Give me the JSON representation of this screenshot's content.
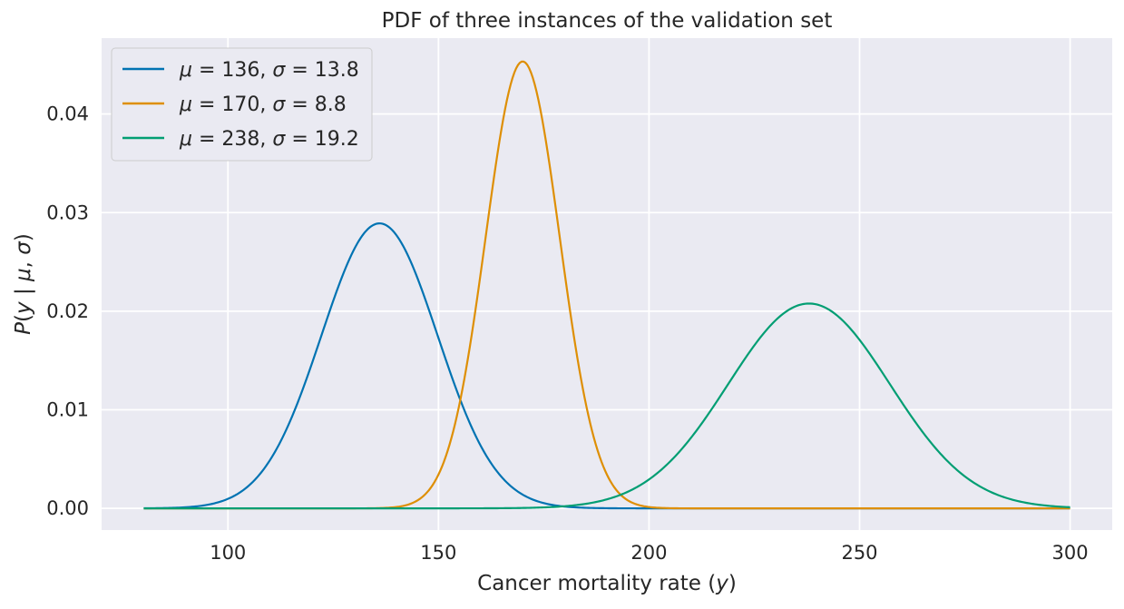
{
  "chart_data": {
    "type": "line",
    "title": "PDF of three instances of the validation set",
    "xlabel": "Cancer mortality rate (y)",
    "ylabel": "P(y | μ, σ)",
    "xlim": [
      70,
      310
    ],
    "ylim": [
      -0.0022,
      0.0477
    ],
    "x_range": [
      80,
      300
    ],
    "xticks": [
      100,
      150,
      200,
      250,
      300
    ],
    "xtick_labels": [
      "100",
      "150",
      "200",
      "250",
      "300"
    ],
    "yticks": [
      0.0,
      0.01,
      0.02,
      0.03,
      0.04
    ],
    "ytick_labels": [
      "0.00",
      "0.01",
      "0.02",
      "0.03",
      "0.04"
    ],
    "grid": true,
    "legend_position": "top-left",
    "series": [
      {
        "name": "μ = 136, σ = 13.8",
        "mu": 136,
        "sigma": 13.8,
        "color": "#0173b2"
      },
      {
        "name": "μ = 170, σ = 8.8",
        "mu": 170,
        "sigma": 8.8,
        "color": "#de8f05"
      },
      {
        "name": "μ = 238, σ = 19.2",
        "mu": 238,
        "sigma": 19.2,
        "color": "#029e73"
      }
    ],
    "legend": [
      {
        "mu": "136",
        "sigma": "13.8"
      },
      {
        "mu": "170",
        "sigma": "8.8"
      },
      {
        "mu": "238",
        "sigma": "19.2"
      }
    ],
    "background_color": "#eaeaf2",
    "grid_color": "#ffffff"
  }
}
